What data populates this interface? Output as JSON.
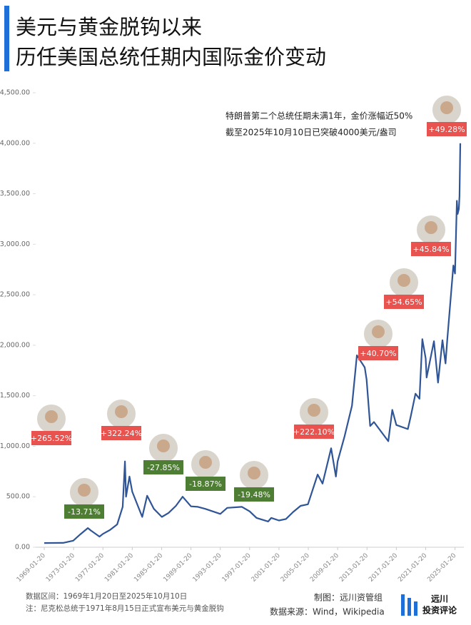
{
  "chart_data": {
    "type": "line",
    "title_lines": [
      "美元与黄金脱钩以来",
      "历任美国总统任期内国际金价变动"
    ],
    "annotation_lines": [
      "特朗普第二个总统任期未满1年，金价涨幅近50%",
      "截至2025年10月10日已突破4000美元/盎司"
    ],
    "series": [
      {
        "color": "#2f5597",
        "x": [
          "1969-01-20",
          "1971-08-15",
          "1973-01-01",
          "1974-01-01",
          "1974-12-30",
          "1975-06-01",
          "1976-08-01",
          "1977-01-20",
          "1978-01-01",
          "1979-01-01",
          "1979-10-01",
          "1980-01-21",
          "1980-03-15",
          "1980-09-01",
          "1981-01-20",
          "1982-06-01",
          "1983-02-01",
          "1984-01-01",
          "1985-02-01",
          "1986-01-01",
          "1987-01-01",
          "1987-12-01",
          "1989-01-20",
          "1990-01-01",
          "1991-01-01",
          "1993-01-20",
          "1994-01-01",
          "1996-01-01",
          "1997-01-20",
          "1998-01-01",
          "1999-08-01",
          "2000-01-01",
          "2001-01-20",
          "2002-01-01",
          "2003-01-01",
          "2004-01-01",
          "2005-01-01",
          "2006-05-01",
          "2007-01-01",
          "2008-03-01",
          "2008-10-24",
          "2009-01-20",
          "2010-01-01",
          "2011-01-01",
          "2011-09-05",
          "2012-10-01",
          "2013-01-01",
          "2013-06-28",
          "2014-01-01",
          "2015-12-17",
          "2016-07-01",
          "2017-01-20",
          "2018-08-16",
          "2019-01-01",
          "2019-09-01",
          "2020-03-19",
          "2020-08-06",
          "2021-01-20",
          "2021-03-08",
          "2022-03-08",
          "2022-09-26",
          "2023-05-04",
          "2023-10-05",
          "2024-01-01",
          "2024-10-30",
          "2025-01-20",
          "2025-04-21",
          "2025-06-01",
          "2025-08-01",
          "2025-09-01",
          "2025-10-10"
        ],
        "values": [
          42,
          43,
          65,
          130,
          190,
          165,
          105,
          132,
          170,
          226,
          400,
          850,
          500,
          700,
          550,
          300,
          510,
          380,
          300,
          340,
          410,
          500,
          405,
          400,
          380,
          330,
          390,
          400,
          355,
          290,
          255,
          290,
          265,
          280,
          350,
          410,
          425,
          720,
          630,
          980,
          700,
          850,
          1100,
          1400,
          1900,
          1780,
          1660,
          1200,
          1240,
          1050,
          1360,
          1210,
          1170,
          1290,
          1520,
          1470,
          2060,
          1870,
          1680,
          2040,
          1630,
          2050,
          1820,
          2060,
          2790,
          2710,
          3430,
          3300,
          3350,
          3480,
          4000
        ]
      }
    ],
    "xlim": [
      "1969-01-20",
      "2025-10-10"
    ],
    "xticks": [
      "1969-01-20",
      "1973-01-20",
      "1977-01-20",
      "1981-01-20",
      "1985-01-20",
      "1989-01-20",
      "1993-01-20",
      "1997-01-20",
      "2001-01-20",
      "2005-01-20",
      "2009-01-20",
      "2013-01-20",
      "2017-01-20",
      "2021-01-20",
      "2025-01-20"
    ],
    "ylim": [
      0,
      4500
    ],
    "yticks": [
      {
        "value": 0,
        "label": "0.00"
      },
      {
        "value": 500,
        "label": "500.00"
      },
      {
        "value": 1000,
        "label": "1,000.00"
      },
      {
        "value": 1500,
        "label": "1,500.00"
      },
      {
        "value": 2000,
        "label": "2,000.00"
      },
      {
        "value": 2500,
        "label": "2,500.00"
      },
      {
        "value": 3000,
        "label": "3,000.00"
      },
      {
        "value": 3500,
        "label": "3,500.00"
      },
      {
        "value": 4000,
        "label": "4,000.00"
      },
      {
        "value": 4500,
        "label": "4,500.00"
      }
    ],
    "term_changes": {
      "values": [
        265.52,
        -13.71,
        322.24,
        -27.85,
        -18.87,
        -19.48,
        222.1,
        40.7,
        54.65,
        45.84,
        49.28
      ],
      "value_labels": [
        "+265.52%",
        "-13.71%",
        "+322.24%",
        "-27.85%",
        "-18.87%",
        "-19.48%",
        "+222.10%",
        "+40.70%",
        "+54.65%",
        "+45.84%",
        "+49.28%"
      ],
      "positive_color": "#e8534f",
      "negative_color": "#4e7d34"
    }
  },
  "footer": {
    "range": "数据区间：1969年1月20日至2025年10月10日",
    "note": "注：尼克松总统于1971年8月15日正式宣布美元与黄金脱钩",
    "maker": "制图：远川资管组",
    "source": "数据来源：Wind，Wikipedia",
    "logo_top": "远川",
    "logo_bottom": "投资评论"
  }
}
